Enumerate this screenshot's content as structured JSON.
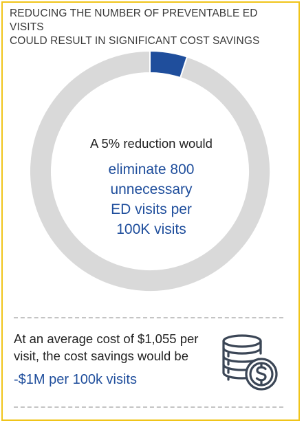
{
  "header": {
    "title_line1": "REDUCING THE NUMBER OF PREVENTABLE ED VISITS",
    "title_line2": "COULD RESULT IN SIGNIFICANT COST SAVINGS"
  },
  "chart_data": {
    "type": "pie",
    "style": "donut",
    "slices": [
      {
        "value": 5,
        "color": "#1f4e9c"
      },
      {
        "value": 95,
        "color": "#d9d9d9"
      }
    ],
    "start_angle_deg": 0
  },
  "donut_text": {
    "intro": "A 5% reduction would",
    "line1": "eliminate 800",
    "line2": "unnecessary",
    "line3": "ED visits per",
    "line4": "100K visits"
  },
  "footer": {
    "note_line1": "At an average cost of $1,055 per",
    "note_line2": "visit, the cost savings would be",
    "savings": "-$1M per 100k visits",
    "icon": "coins-dollar-icon"
  },
  "colors": {
    "accent": "#1f4e9c",
    "border": "#f0c419",
    "muted_ring": "#d9d9d9"
  }
}
